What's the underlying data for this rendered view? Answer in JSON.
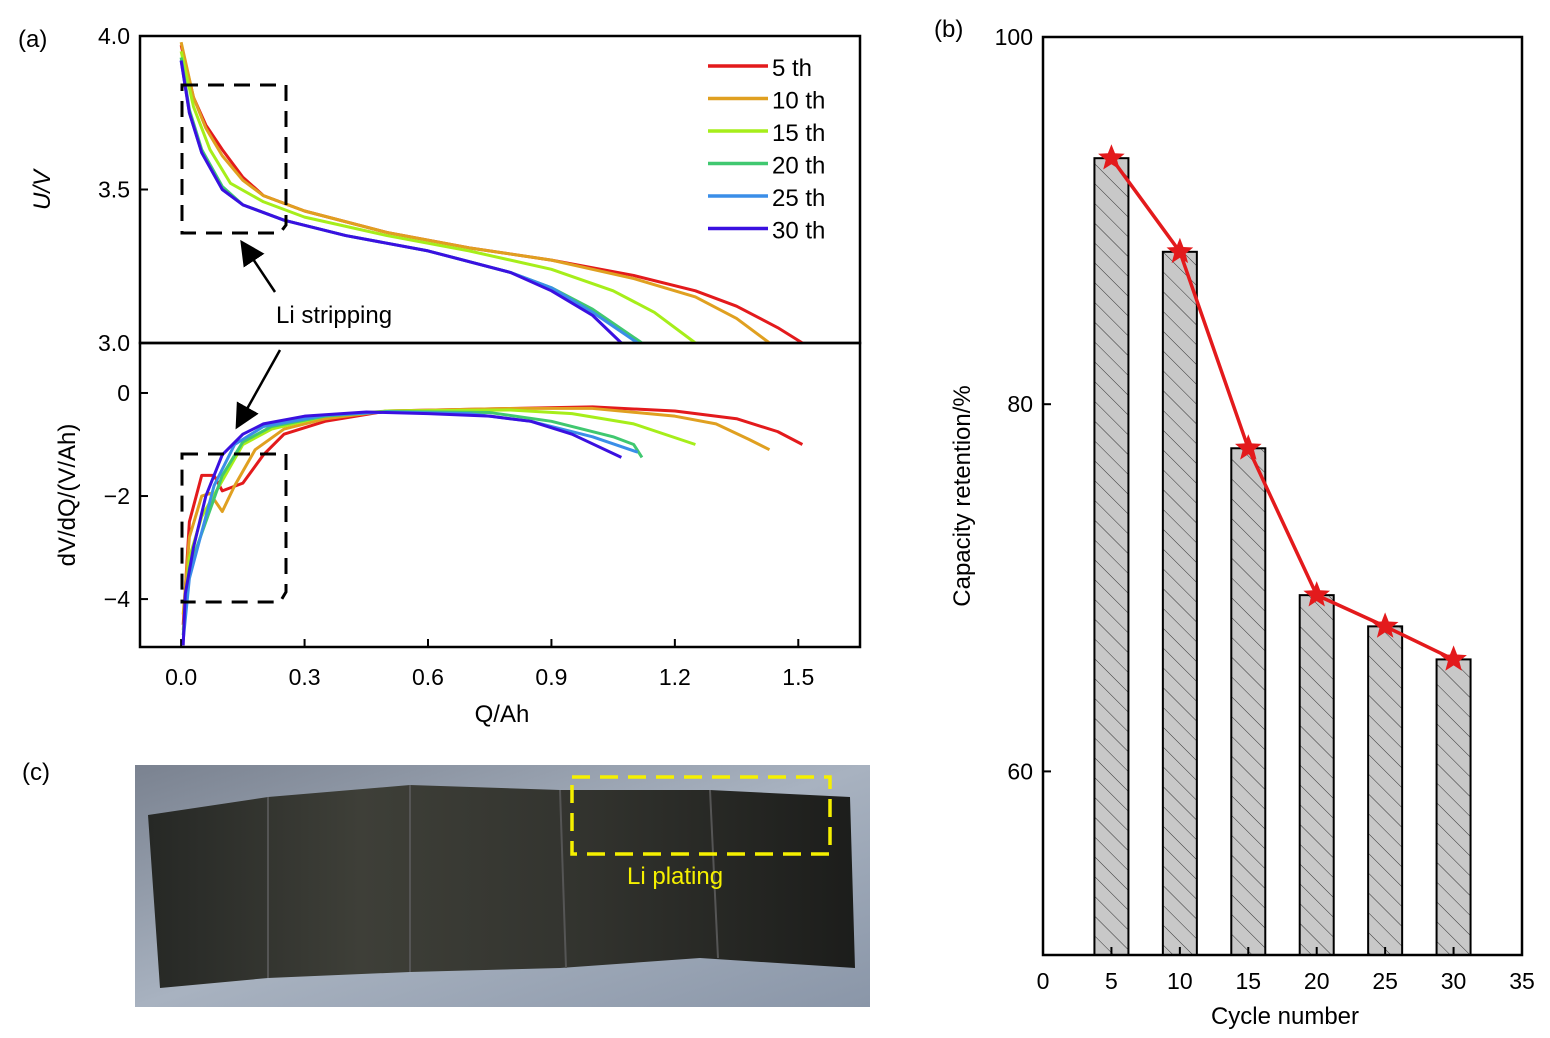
{
  "panel_labels": {
    "a": "(a)",
    "b": "(b)",
    "c": "(c)"
  },
  "chart_data": [
    {
      "id": "a-top",
      "type": "line",
      "ylabel": "U/V",
      "xlim": [
        -0.1,
        1.65
      ],
      "ylim": [
        3.0,
        4.0
      ],
      "yticks": [
        3.0,
        3.5,
        4.0
      ],
      "ytick_labels": [
        "3.0",
        "3.5",
        "4.0"
      ],
      "legend_position": "top-right",
      "annotation": "Li stripping",
      "series": [
        {
          "name": "5 th",
          "color": "#e31a1c",
          "points": [
            [
              0,
              3.97
            ],
            [
              0.03,
              3.8
            ],
            [
              0.06,
              3.71
            ],
            [
              0.1,
              3.63
            ],
            [
              0.15,
              3.54
            ],
            [
              0.2,
              3.48
            ],
            [
              0.3,
              3.43
            ],
            [
              0.5,
              3.36
            ],
            [
              0.7,
              3.31
            ],
            [
              0.9,
              3.27
            ],
            [
              1.1,
              3.22
            ],
            [
              1.25,
              3.17
            ],
            [
              1.35,
              3.12
            ],
            [
              1.45,
              3.05
            ],
            [
              1.51,
              3.0
            ]
          ]
        },
        {
          "name": "10 th",
          "color": "#e0a020",
          "points": [
            [
              0,
              3.98
            ],
            [
              0.03,
              3.8
            ],
            [
              0.06,
              3.7
            ],
            [
              0.1,
              3.61
            ],
            [
              0.15,
              3.53
            ],
            [
              0.2,
              3.48
            ],
            [
              0.3,
              3.43
            ],
            [
              0.5,
              3.36
            ],
            [
              0.7,
              3.31
            ],
            [
              0.9,
              3.27
            ],
            [
              1.1,
              3.21
            ],
            [
              1.25,
              3.15
            ],
            [
              1.35,
              3.08
            ],
            [
              1.43,
              3.0
            ]
          ]
        },
        {
          "name": "15 th",
          "color": "#a6ee1a",
          "points": [
            [
              0,
              3.95
            ],
            [
              0.03,
              3.77
            ],
            [
              0.07,
              3.63
            ],
            [
              0.12,
              3.52
            ],
            [
              0.2,
              3.46
            ],
            [
              0.3,
              3.41
            ],
            [
              0.5,
              3.35
            ],
            [
              0.7,
              3.3
            ],
            [
              0.9,
              3.24
            ],
            [
              1.05,
              3.17
            ],
            [
              1.15,
              3.1
            ],
            [
              1.25,
              3.0
            ]
          ]
        },
        {
          "name": "20 th",
          "color": "#40c870",
          "points": [
            [
              0,
              3.93
            ],
            [
              0.02,
              3.76
            ],
            [
              0.05,
              3.63
            ],
            [
              0.1,
              3.51
            ],
            [
              0.15,
              3.45
            ],
            [
              0.25,
              3.4
            ],
            [
              0.4,
              3.35
            ],
            [
              0.6,
              3.3
            ],
            [
              0.8,
              3.23
            ],
            [
              0.9,
              3.18
            ],
            [
              1.0,
              3.11
            ],
            [
              1.12,
              3.0
            ]
          ]
        },
        {
          "name": "25 th",
          "color": "#3a8ee8",
          "points": [
            [
              0,
              3.92
            ],
            [
              0.02,
              3.75
            ],
            [
              0.05,
              3.62
            ],
            [
              0.1,
              3.5
            ],
            [
              0.15,
              3.45
            ],
            [
              0.25,
              3.4
            ],
            [
              0.4,
              3.35
            ],
            [
              0.6,
              3.3
            ],
            [
              0.8,
              3.23
            ],
            [
              0.9,
              3.18
            ],
            [
              1.0,
              3.1
            ],
            [
              1.11,
              3.0
            ]
          ]
        },
        {
          "name": "30 th",
          "color": "#3a10e0",
          "points": [
            [
              0,
              3.92
            ],
            [
              0.02,
              3.75
            ],
            [
              0.05,
              3.62
            ],
            [
              0.1,
              3.5
            ],
            [
              0.15,
              3.45
            ],
            [
              0.25,
              3.4
            ],
            [
              0.4,
              3.35
            ],
            [
              0.6,
              3.3
            ],
            [
              0.8,
              3.23
            ],
            [
              0.9,
              3.17
            ],
            [
              1.0,
              3.09
            ],
            [
              1.07,
              3.0
            ]
          ]
        }
      ]
    },
    {
      "id": "a-bottom",
      "type": "line",
      "xlabel": "Q/Ah",
      "ylabel": "dV/dQ/(V/Ah)",
      "xlim": [
        -0.1,
        1.65
      ],
      "ylim": [
        -4.93,
        0.97
      ],
      "xticks": [
        0.0,
        0.3,
        0.6,
        0.9,
        1.2,
        1.5
      ],
      "xtick_labels": [
        "0.0",
        "0.3",
        "0.6",
        "0.9",
        "1.2",
        "1.5"
      ],
      "yticks": [
        -4,
        -2,
        0
      ],
      "ytick_labels": [
        "−4",
        "−2",
        "0"
      ],
      "series": [
        {
          "name": "5 th",
          "color": "#e31a1c",
          "points": [
            [
              0.005,
              -4.5
            ],
            [
              0.02,
              -2.5
            ],
            [
              0.05,
              -1.6
            ],
            [
              0.08,
              -1.6
            ],
            [
              0.1,
              -1.9
            ],
            [
              0.15,
              -1.75
            ],
            [
              0.2,
              -1.2
            ],
            [
              0.25,
              -0.8
            ],
            [
              0.35,
              -0.55
            ],
            [
              0.5,
              -0.35
            ],
            [
              0.8,
              -0.3
            ],
            [
              1.0,
              -0.27
            ],
            [
              1.2,
              -0.35
            ],
            [
              1.35,
              -0.5
            ],
            [
              1.45,
              -0.75
            ],
            [
              1.51,
              -1.0
            ]
          ]
        },
        {
          "name": "10 th",
          "color": "#e0a020",
          "points": [
            [
              0.005,
              -4.3
            ],
            [
              0.02,
              -2.8
            ],
            [
              0.05,
              -2.0
            ],
            [
              0.07,
              -1.95
            ],
            [
              0.1,
              -2.3
            ],
            [
              0.13,
              -1.8
            ],
            [
              0.18,
              -1.1
            ],
            [
              0.25,
              -0.7
            ],
            [
              0.35,
              -0.5
            ],
            [
              0.5,
              -0.35
            ],
            [
              0.8,
              -0.3
            ],
            [
              1.0,
              -0.3
            ],
            [
              1.2,
              -0.45
            ],
            [
              1.3,
              -0.6
            ],
            [
              1.38,
              -0.9
            ],
            [
              1.43,
              -1.1
            ]
          ]
        },
        {
          "name": "15 th",
          "color": "#a6ee1a",
          "points": [
            [
              0.005,
              -4.6
            ],
            [
              0.02,
              -3.2
            ],
            [
              0.05,
              -2.4
            ],
            [
              0.1,
              -1.7
            ],
            [
              0.15,
              -1.0
            ],
            [
              0.22,
              -0.7
            ],
            [
              0.35,
              -0.45
            ],
            [
              0.5,
              -0.35
            ],
            [
              0.8,
              -0.33
            ],
            [
              0.95,
              -0.4
            ],
            [
              1.1,
              -0.6
            ],
            [
              1.25,
              -1.0
            ]
          ]
        },
        {
          "name": "20 th",
          "color": "#40c870",
          "points": [
            [
              0.005,
              -4.7
            ],
            [
              0.02,
              -3.4
            ],
            [
              0.06,
              -2.5
            ],
            [
              0.1,
              -1.6
            ],
            [
              0.15,
              -0.95
            ],
            [
              0.22,
              -0.65
            ],
            [
              0.35,
              -0.45
            ],
            [
              0.5,
              -0.36
            ],
            [
              0.75,
              -0.38
            ],
            [
              0.9,
              -0.55
            ],
            [
              1.05,
              -0.85
            ],
            [
              1.1,
              -1.0
            ],
            [
              1.12,
              -1.25
            ]
          ]
        },
        {
          "name": "25 th",
          "color": "#3a8ee8",
          "points": [
            [
              0.005,
              -4.8
            ],
            [
              0.02,
              -3.6
            ],
            [
              0.05,
              -2.7
            ],
            [
              0.08,
              -1.8
            ],
            [
              0.13,
              -1.0
            ],
            [
              0.2,
              -0.65
            ],
            [
              0.35,
              -0.43
            ],
            [
              0.5,
              -0.37
            ],
            [
              0.7,
              -0.4
            ],
            [
              0.85,
              -0.55
            ],
            [
              1.0,
              -0.85
            ],
            [
              1.11,
              -1.15
            ]
          ]
        },
        {
          "name": "30 th",
          "color": "#3a10e0",
          "points": [
            [
              0.005,
              -4.9
            ],
            [
              0.01,
              -3.9
            ],
            [
              0.03,
              -3.0
            ],
            [
              0.06,
              -2.0
            ],
            [
              0.1,
              -1.2
            ],
            [
              0.15,
              -0.8
            ],
            [
              0.2,
              -0.6
            ],
            [
              0.3,
              -0.45
            ],
            [
              0.45,
              -0.37
            ],
            [
              0.6,
              -0.4
            ],
            [
              0.75,
              -0.45
            ],
            [
              0.85,
              -0.55
            ],
            [
              0.95,
              -0.8
            ],
            [
              1.07,
              -1.25
            ]
          ]
        }
      ]
    },
    {
      "id": "b",
      "type": "bar",
      "xlabel": "Cycle number",
      "ylabel": "Capacity retention/%",
      "xlim": [
        0,
        35
      ],
      "ylim": [
        50,
        100
      ],
      "xticks": [
        0,
        5,
        10,
        15,
        20,
        25,
        30,
        35
      ],
      "xtick_labels": [
        "0",
        "5",
        "10",
        "15",
        "20",
        "25",
        "30",
        "35"
      ],
      "yticks": [
        60,
        80,
        100
      ],
      "ytick_labels": [
        "60",
        "80",
        "100"
      ],
      "categories": [
        5,
        10,
        15,
        20,
        25,
        30
      ],
      "values": [
        93.4,
        88.3,
        77.6,
        69.6,
        67.9,
        66.1
      ],
      "bar_color": "#c8c8c8",
      "line_color": "#e31a1c",
      "marker": "star"
    }
  ],
  "photo": {
    "annotation": "Li plating",
    "annotation_color": "#f5f000"
  }
}
